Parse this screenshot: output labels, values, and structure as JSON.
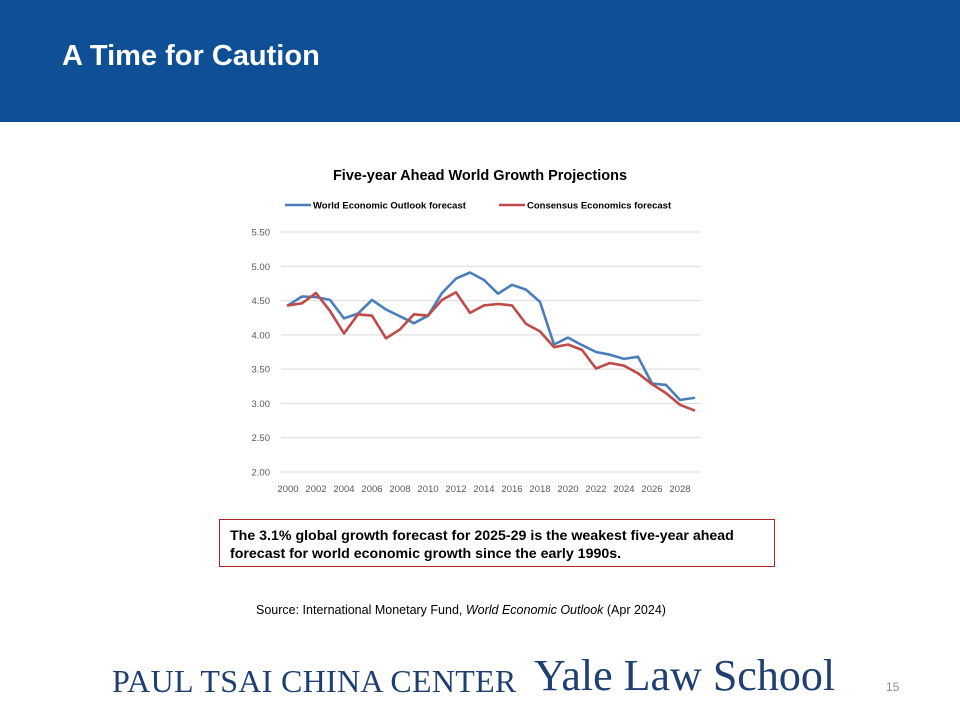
{
  "slide": {
    "title": "A Time for Caution",
    "callout": "The 3.1% global growth forecast for 2025-29 is the weakest five-year ahead forecast for world economic growth since the early 1990s.",
    "source_prefix": "Source: International Monetary Fund, ",
    "source_italic": "World Economic Outlook",
    "source_suffix": " (Apr 2024)",
    "footer_center": "PAUL TSAI CHINA CENTER",
    "footer_school": "Yale Law School",
    "page_number": "15"
  },
  "colors": {
    "header_bg": "#0f4f96",
    "weo": "#4a7ebb",
    "consensus": "#be4b48",
    "callout_border": "#b22222",
    "footer_text": "#1f3f73"
  },
  "chart_data": {
    "type": "line",
    "title": "Five-year Ahead World Growth Projections",
    "legend_position": "top",
    "grid": true,
    "ylim": [
      2.0,
      5.5
    ],
    "yticks": [
      "2.00",
      "2.50",
      "3.00",
      "3.50",
      "4.00",
      "4.50",
      "5.00",
      "5.50"
    ],
    "xticks": [
      "2000",
      "2002",
      "2004",
      "2006",
      "2008",
      "2010",
      "2012",
      "2014",
      "2016",
      "2018",
      "2020",
      "2022",
      "2024",
      "2026",
      "2028"
    ],
    "x": [
      2000,
      2001,
      2002,
      2003,
      2004,
      2005,
      2006,
      2007,
      2008,
      2009,
      2010,
      2011,
      2012,
      2013,
      2014,
      2015,
      2016,
      2017,
      2018,
      2019,
      2020,
      2021,
      2022,
      2023,
      2024,
      2025,
      2026,
      2027,
      2028,
      2029
    ],
    "series": [
      {
        "name": "World Economic Outlook forecast",
        "values": [
          4.43,
          4.56,
          4.55,
          4.51,
          4.24,
          4.31,
          4.51,
          4.37,
          4.27,
          4.17,
          4.28,
          4.61,
          4.82,
          4.91,
          4.8,
          4.6,
          4.73,
          4.66,
          4.48,
          3.86,
          3.96,
          3.85,
          3.75,
          3.71,
          3.65,
          3.68,
          3.29,
          3.27,
          3.05,
          3.08
        ]
      },
      {
        "name": "Consensus Economics forecast",
        "values": [
          4.43,
          4.46,
          4.61,
          4.35,
          4.02,
          4.3,
          4.28,
          3.95,
          4.08,
          4.3,
          4.28,
          4.51,
          4.62,
          4.32,
          4.43,
          4.45,
          4.43,
          4.16,
          4.05,
          3.82,
          3.86,
          3.78,
          3.51,
          3.59,
          3.55,
          3.44,
          3.28,
          3.15,
          2.98,
          2.9
        ]
      }
    ]
  }
}
